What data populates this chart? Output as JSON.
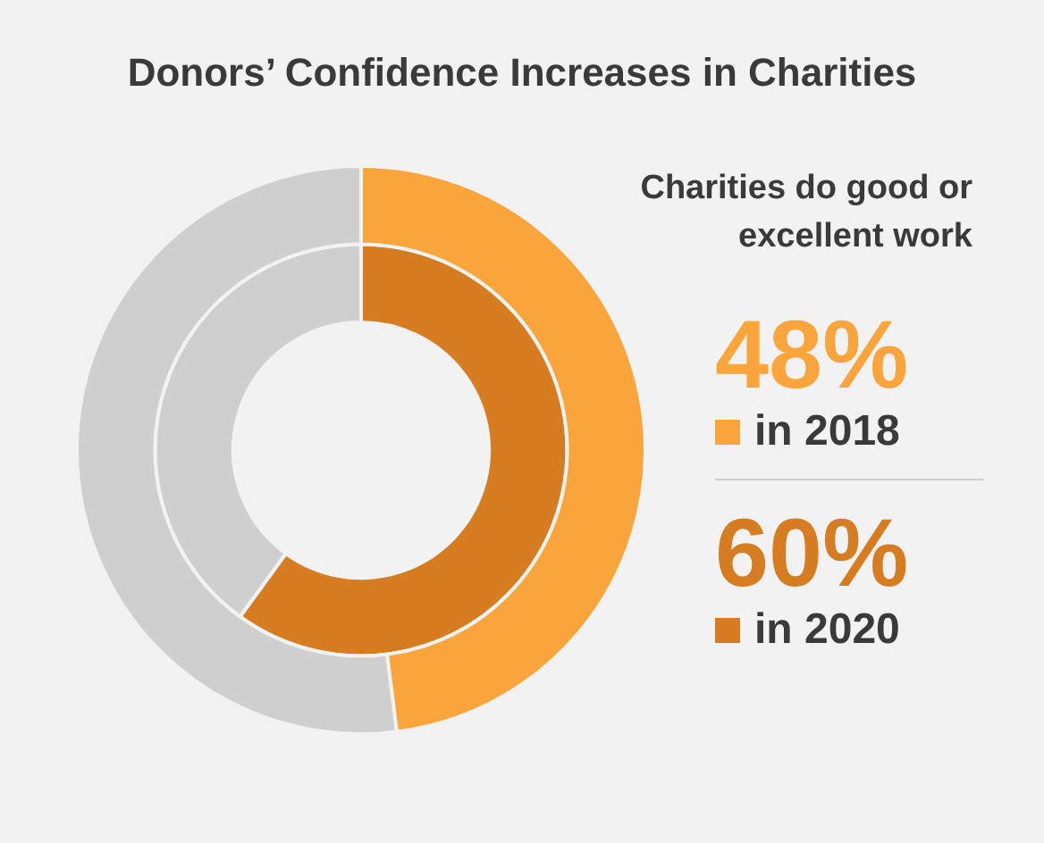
{
  "chart_data": {
    "type": "donut",
    "title": "Donors’ Confidence Increases in Charities",
    "subtitle": "Charities do good or excellent work",
    "categories": [
      null,
      null
    ],
    "legend": "right",
    "series": [
      {
        "name": "in 2018",
        "colors": [
          "#f9a53c",
          "#cfcfcf"
        ],
        "values": [
          48,
          52
        ],
        "value_labels": [
          "48%",
          null
        ]
      },
      {
        "name": "in 2020",
        "colors": [
          "#d67d22",
          "#cfcfcf"
        ],
        "values": [
          60,
          40
        ],
        "value_labels": [
          "60%",
          null
        ]
      }
    ]
  }
}
